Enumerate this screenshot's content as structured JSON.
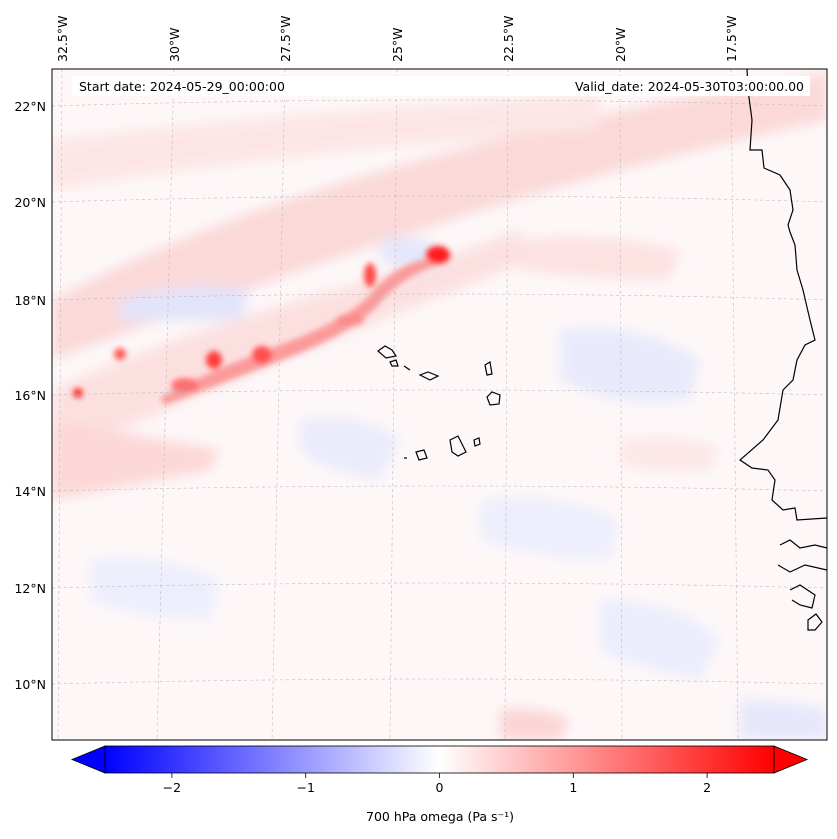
{
  "header": {
    "start_date": "Start date: 2024-05-29_00:00:00",
    "valid_date": "Valid_date: 2024-05-30T03:00:00.00"
  },
  "map": {
    "lon_labels": [
      "32.5°W",
      "30°W",
      "27.5°W",
      "25°W",
      "22.5°W",
      "20°W",
      "17.5°W"
    ],
    "lat_labels": [
      "22°N",
      "20°N",
      "18°N",
      "16°N",
      "14°N",
      "12°N",
      "10°N"
    ],
    "field": "700 hPa omega",
    "colormap": "bwr",
    "coastline_color": "#000000",
    "gridline_color": "#bbbbbb"
  },
  "colorbar": {
    "label": "700 hPa omega (Pa s⁻¹)",
    "ticks": [
      "−2",
      "−1",
      "0",
      "1",
      "2"
    ],
    "tick_values": [
      -2,
      -1,
      0,
      1,
      2
    ],
    "range": [
      -2.5,
      2.5
    ],
    "extend": "both"
  }
}
